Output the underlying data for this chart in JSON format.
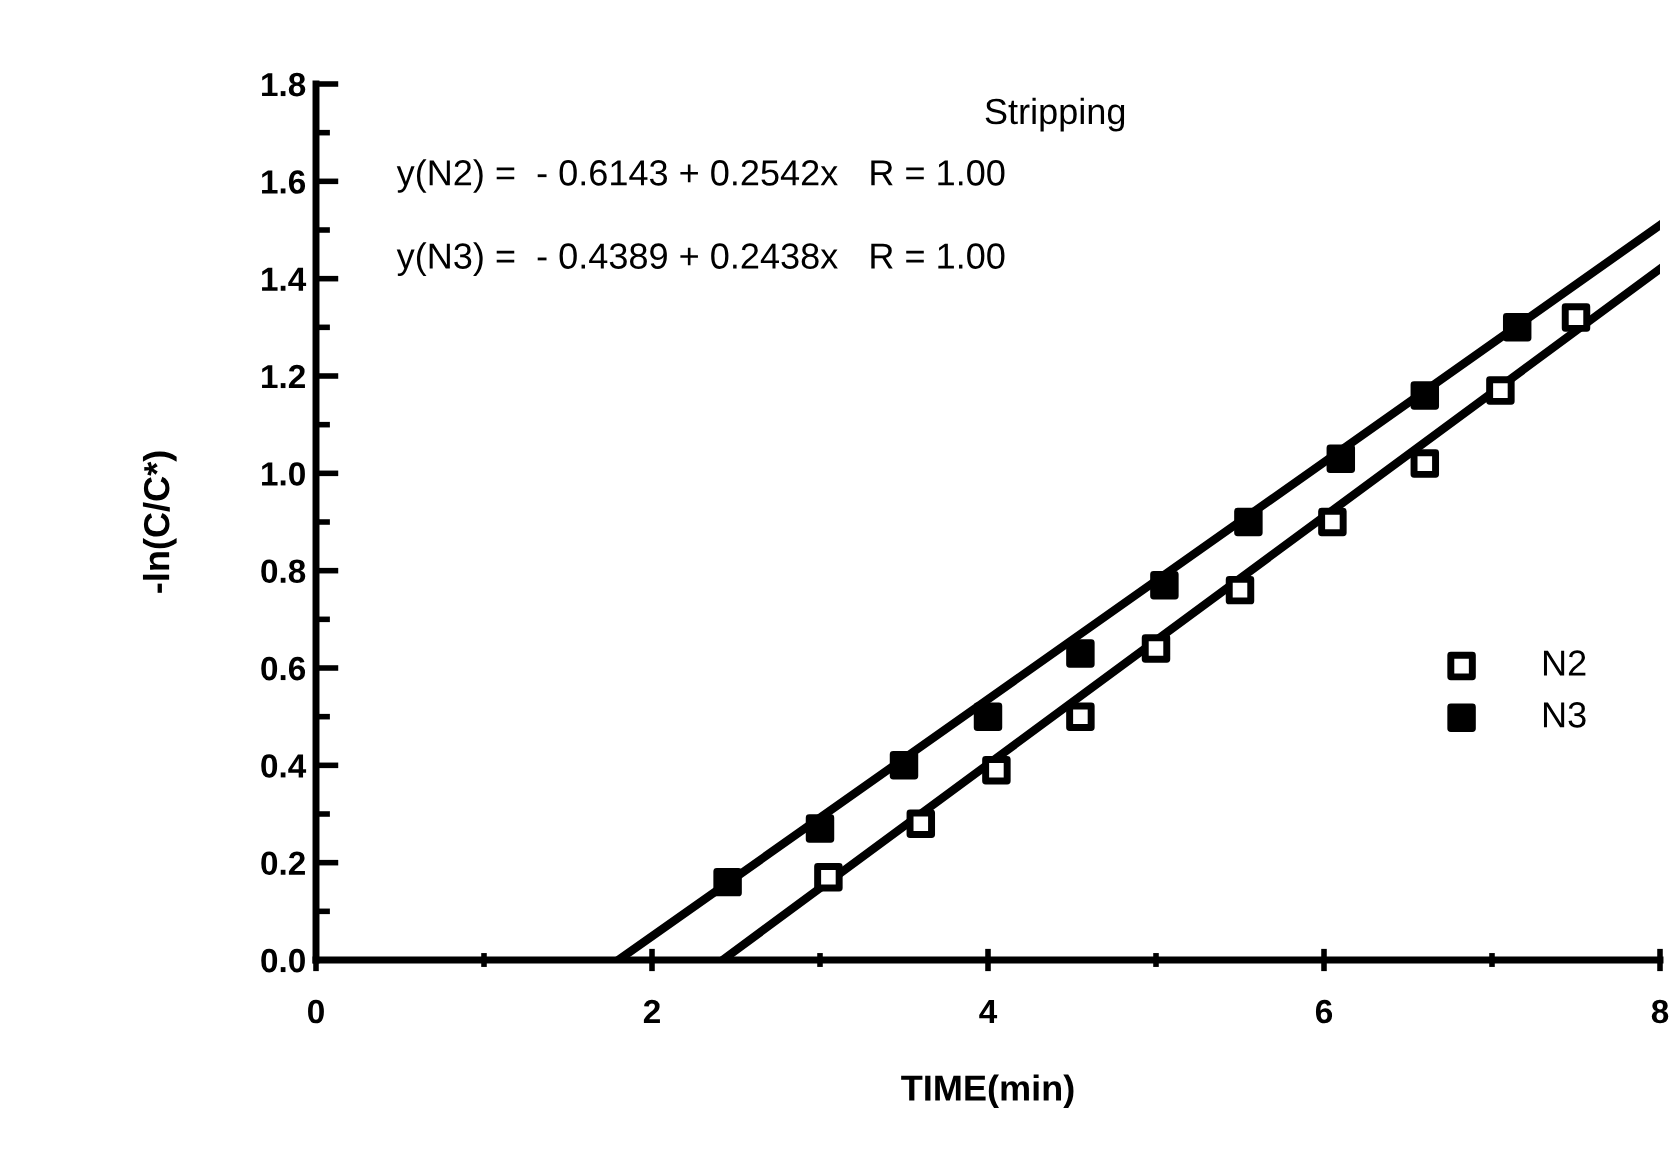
{
  "chart_data": {
    "type": "scatter",
    "xlabel": "TIME(min)",
    "ylabel": "-ln(C/C*)",
    "annotations": [
      "Stripping",
      "y(N2) =  - 0.6143 + 0.2542x   R = 1.00",
      "y(N3) =  - 0.4389 + 0.2438x   R = 1.00"
    ],
    "series": [
      {
        "name": "N2",
        "color": "#ffffff",
        "marker": "square",
        "x": [
          3.05,
          3.6,
          4.05,
          4.55,
          5.0,
          5.5,
          6.05,
          6.6,
          7.05,
          7.5
        ],
        "values": [
          0.17,
          0.28,
          0.39,
          0.5,
          0.64,
          0.76,
          0.9,
          1.02,
          1.17,
          1.32
        ]
      },
      {
        "name": "N3",
        "color": "#000000",
        "marker": "square",
        "x": [
          2.45,
          3.0,
          3.5,
          4.0,
          4.55,
          5.05,
          5.55,
          6.1,
          6.6,
          7.15
        ],
        "values": [
          0.16,
          0.27,
          0.4,
          0.5,
          0.63,
          0.77,
          0.9,
          1.03,
          1.16,
          1.3
        ]
      },
      {
        "type": "line",
        "color": "#000000",
        "x": [
          2.42,
          8.0
        ],
        "values": [
          0.0,
          1.42
        ]
      },
      {
        "type": "line",
        "color": "#000000",
        "x": [
          1.8,
          8.0
        ],
        "values": [
          0.0,
          1.51
        ]
      }
    ],
    "xlim": [
      0,
      8
    ],
    "xticks": [
      0,
      2,
      4,
      6,
      8
    ],
    "ylim": [
      0,
      1.8
    ],
    "yticks": [
      {
        "value": 0,
        "label": "0.0"
      },
      0.2,
      0.4,
      0.6,
      0.8,
      {
        "value": 1,
        "label": "1.0"
      },
      1.2,
      1.4,
      1.6,
      1.8
    ],
    "grid": false,
    "legend": "bottom right"
  }
}
